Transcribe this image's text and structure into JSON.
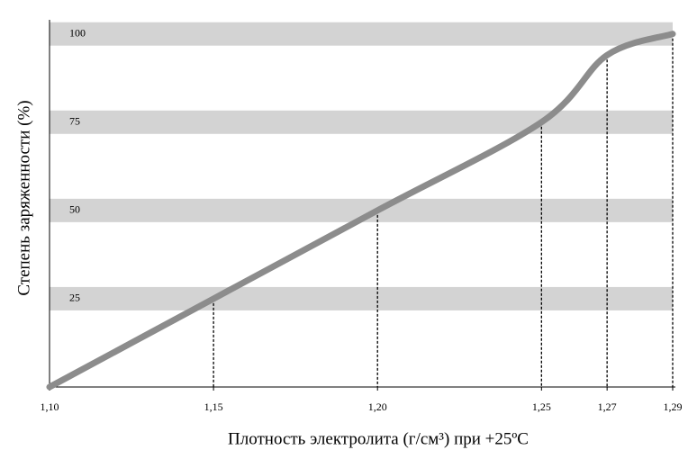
{
  "chart_data": {
    "type": "line",
    "xlabel": "Плотность электролита (г/см³) при +25ºC",
    "ylabel": "Степень заряженности (%)",
    "x": [
      1.1,
      1.15,
      1.2,
      1.25,
      1.27,
      1.29
    ],
    "series": [
      {
        "color": "#8c8c8c",
        "values": [
          0,
          25,
          50,
          75,
          94,
          100
        ]
      }
    ],
    "xlim": [
      1.1,
      1.29
    ],
    "xticks": [
      {
        "value": 1.1,
        "label": "1,10"
      },
      {
        "value": 1.15,
        "label": "1,15"
      },
      {
        "value": 1.2,
        "label": "1,20"
      },
      {
        "value": 1.25,
        "label": "1,25"
      },
      {
        "value": 1.27,
        "label": "1,27"
      },
      {
        "value": 1.29,
        "label": "1,29"
      }
    ],
    "ylim": [
      0,
      104
    ],
    "yticks": [
      25,
      50,
      75,
      100
    ],
    "grid_band_color": "#d3d3d3"
  }
}
